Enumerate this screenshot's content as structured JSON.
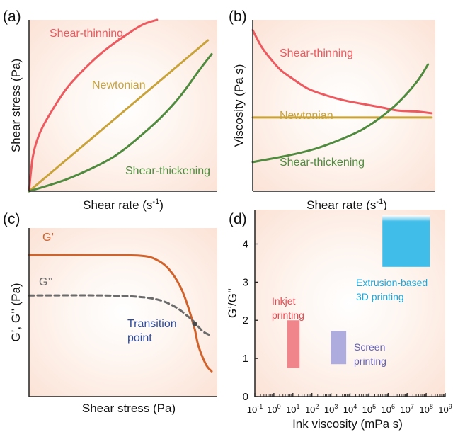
{
  "colors": {
    "shear_thinning": "#ec5a5f",
    "newtonian": "#c8a33b",
    "shear_thickening": "#4f8a3e",
    "g_prime": "#d0622c",
    "g_double_prime": "#6b6b6b",
    "transition": "#2e4b9c",
    "inkjet": "#ef7f86",
    "screen": "#aaa8dc",
    "extrusion": "#41bdea",
    "panel_bg_center": "#ffffff",
    "panel_bg_edge": "#fbe0d3"
  },
  "panels": {
    "a": {
      "tag": "(a)"
    },
    "b": {
      "tag": "(b)"
    },
    "c": {
      "tag": "(c)"
    },
    "d": {
      "tag": "(d)"
    }
  },
  "chart_data": [
    {
      "panel": "a",
      "type": "line",
      "xlabel": "Shear rate (s-1)",
      "ylabel": "Shear stress (Pa)",
      "xlim": [
        0,
        1
      ],
      "ylim": [
        0,
        1
      ],
      "series": [
        {
          "name": "Shear-thinning",
          "x": [
            0,
            0.02,
            0.05,
            0.1,
            0.2,
            0.3,
            0.4,
            0.5,
            0.6,
            0.68
          ],
          "y": [
            0,
            0.2,
            0.32,
            0.43,
            0.6,
            0.72,
            0.82,
            0.9,
            0.97,
            1.0
          ]
        },
        {
          "name": "Newtonian",
          "x": [
            0,
            0.95
          ],
          "y": [
            0,
            0.88
          ]
        },
        {
          "name": "Shear-thickening",
          "x": [
            0,
            0.2,
            0.4,
            0.5,
            0.6,
            0.7,
            0.8,
            0.9,
            0.97
          ],
          "y": [
            0,
            0.07,
            0.17,
            0.24,
            0.33,
            0.43,
            0.55,
            0.7,
            0.8
          ]
        }
      ]
    },
    {
      "panel": "b",
      "type": "line",
      "xlabel": "Shear rate (s-1)",
      "ylabel": "Viscosity (Pa s)",
      "xlim": [
        0,
        1
      ],
      "ylim": [
        0,
        1
      ],
      "series": [
        {
          "name": "Shear-thinning",
          "x": [
            0,
            0.05,
            0.1,
            0.15,
            0.2,
            0.3,
            0.4,
            0.5,
            0.6,
            0.7,
            0.8,
            0.9,
            0.98
          ],
          "y": [
            0.94,
            0.84,
            0.77,
            0.71,
            0.67,
            0.6,
            0.56,
            0.53,
            0.51,
            0.49,
            0.47,
            0.465,
            0.455
          ]
        },
        {
          "name": "Newtonian",
          "x": [
            0,
            0.98
          ],
          "y": [
            0.43,
            0.43
          ]
        },
        {
          "name": "Shear-thickening",
          "x": [
            0,
            0.2,
            0.35,
            0.5,
            0.6,
            0.7,
            0.8,
            0.9,
            0.96
          ],
          "y": [
            0.17,
            0.21,
            0.25,
            0.31,
            0.36,
            0.43,
            0.52,
            0.64,
            0.74
          ]
        }
      ]
    },
    {
      "panel": "c",
      "type": "line",
      "xlabel": "Shear stress (Pa)",
      "ylabel": "G’, G’’ (Pa)",
      "xlim": [
        0,
        1
      ],
      "ylim": [
        0,
        1
      ],
      "series": [
        {
          "name": "G’",
          "x": [
            0,
            0.4,
            0.6,
            0.68,
            0.74,
            0.8,
            0.84,
            0.88,
            0.9,
            0.94,
            0.97
          ],
          "y": [
            0.84,
            0.84,
            0.835,
            0.81,
            0.76,
            0.66,
            0.55,
            0.4,
            0.3,
            0.19,
            0.15
          ]
        },
        {
          "name": "G’’",
          "x": [
            0,
            0.4,
            0.6,
            0.7,
            0.78,
            0.84,
            0.88,
            0.92,
            0.95,
            0.97
          ],
          "y": [
            0.6,
            0.6,
            0.59,
            0.57,
            0.53,
            0.48,
            0.44,
            0.39,
            0.37,
            0.36
          ]
        }
      ],
      "annotations": [
        {
          "text": "Transition point",
          "x": 0.88,
          "y": 0.43
        }
      ]
    },
    {
      "panel": "d",
      "type": "bar",
      "xlabel": "Ink viscosity (mPa s)",
      "ylabel": "G’/G’’",
      "xscale": "log",
      "xlim": [
        -1,
        9
      ],
      "ylim": [
        0,
        4.9
      ],
      "xticks": [
        {
          "base": "10",
          "exp": "-1"
        },
        {
          "base": "10",
          "exp": "0"
        },
        {
          "base": "10",
          "exp": "1"
        },
        {
          "base": "10",
          "exp": "2"
        },
        {
          "base": "10",
          "exp": "3"
        },
        {
          "base": "10",
          "exp": "4"
        },
        {
          "base": "10",
          "exp": "5"
        },
        {
          "base": "10",
          "exp": "6"
        },
        {
          "base": "10",
          "exp": "7"
        },
        {
          "base": "10",
          "exp": "8"
        },
        {
          "base": "10",
          "exp": "9"
        }
      ],
      "yticks": [
        "0",
        "1",
        "2",
        "3",
        "4"
      ],
      "ranges": [
        {
          "label": "Inkjet printing",
          "x0": 0.7,
          "x1": 1.35,
          "y0": 0.75,
          "y1": 2.0,
          "color": "#ef7f86"
        },
        {
          "label": "Screen printing",
          "x0": 3.0,
          "x1": 3.8,
          "y0": 0.85,
          "y1": 1.72,
          "color": "#aaa8dc"
        },
        {
          "label": "Extrusion-based 3D printing",
          "x0": 5.7,
          "x1": 8.2,
          "y0": 3.4,
          "y1": 4.75,
          "color": "#41bdea"
        }
      ]
    }
  ]
}
